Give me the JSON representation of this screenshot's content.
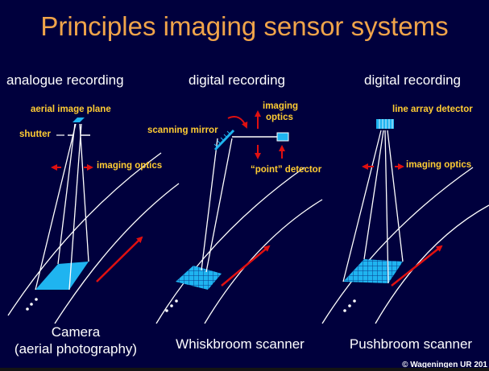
{
  "title": "Principles imaging sensor systems",
  "columns": [
    {
      "heading": "analogue recording",
      "caption_line1": "Camera",
      "caption_line2": "(aerial photography)"
    },
    {
      "heading": "digital recording",
      "caption_line1": "Whiskbroom scanner"
    },
    {
      "heading": "digital recording",
      "caption_line1": "Pushbroom scanner"
    }
  ],
  "labels": {
    "aerial_image_plane": "aerial image plane",
    "shutter": "shutter",
    "imaging_optics_left": "imaging optics",
    "scanning_mirror": "scanning mirror",
    "imaging_optics_mid_1": "imaging",
    "imaging_optics_mid_2": "optics",
    "point_detector": "“point” detector",
    "line_array_detector": "line array detector",
    "imaging_optics_right": "imaging optics"
  },
  "copyright": "© Wageningen UR 201",
  "colors": {
    "background": "#00003d",
    "title": "#f0a44a",
    "label": "#ffcc33",
    "lines": "#ffffff",
    "detector": "#1fb4f0",
    "arrow": "#e01010"
  }
}
